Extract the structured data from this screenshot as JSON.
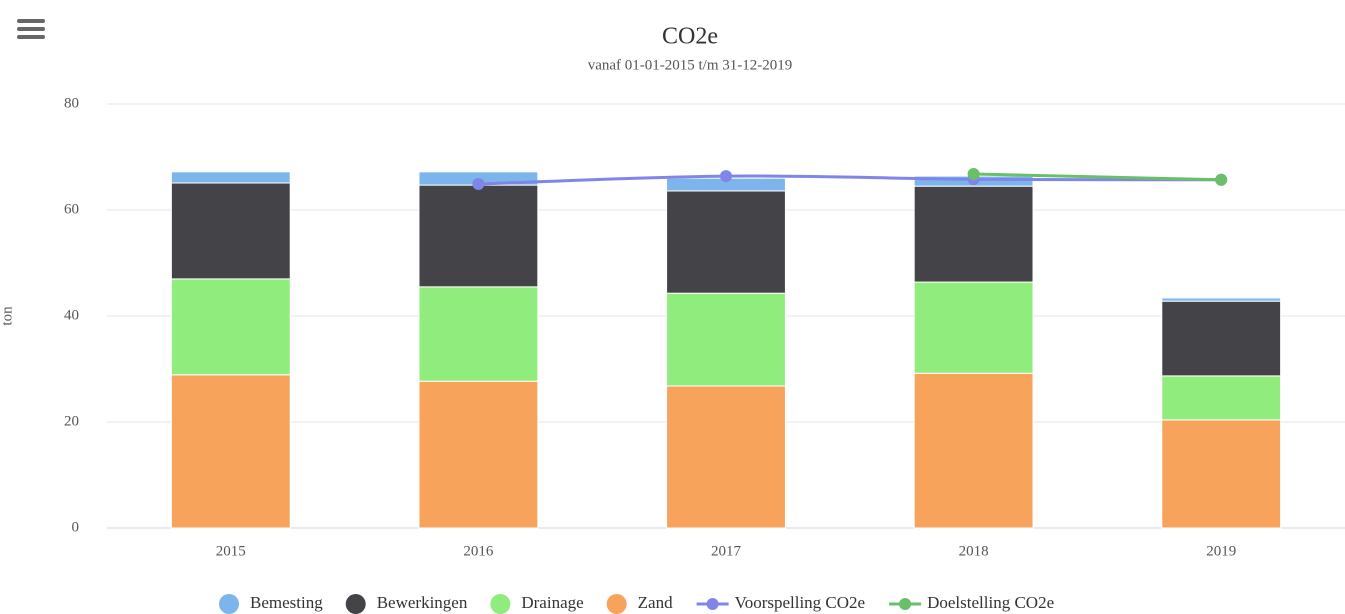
{
  "chart_data": {
    "type": "bar",
    "stacked": true,
    "title": "CO2e",
    "subtitle": "vanaf 01-01-2015 t/m 31-12-2019",
    "y_label": "ton",
    "categories": [
      "2015",
      "2016",
      "2017",
      "2018",
      "2019"
    ],
    "ylim": [
      0,
      80
    ],
    "yticks": [
      0,
      20,
      40,
      60,
      80
    ],
    "grid": true,
    "legend": "bottom",
    "series": [
      {
        "name": "Zand",
        "type": "bar",
        "color": "#f7a35c",
        "values": [
          28.9,
          27.7,
          26.8,
          29.2,
          20.4
        ]
      },
      {
        "name": "Drainage",
        "type": "bar",
        "color": "#90ed7d",
        "values": [
          18.1,
          17.8,
          17.5,
          17.2,
          8.3
        ]
      },
      {
        "name": "Bewerkingen",
        "type": "bar",
        "color": "#434348",
        "values": [
          18.1,
          19.2,
          19.3,
          18.1,
          14.1
        ]
      },
      {
        "name": "Bemesting",
        "type": "bar",
        "color": "#7cb5ec",
        "values": [
          2.1,
          2.5,
          2.4,
          1.9,
          0.6
        ]
      },
      {
        "name": "Voorspelling CO2e",
        "type": "line",
        "color": "#8085e9",
        "values": [
          null,
          64.9,
          66.4,
          65.8,
          65.7
        ]
      },
      {
        "name": "Doelstelling CO2e",
        "type": "line",
        "color": "#6abf69",
        "values": [
          null,
          null,
          null,
          66.8,
          65.7
        ]
      }
    ]
  }
}
